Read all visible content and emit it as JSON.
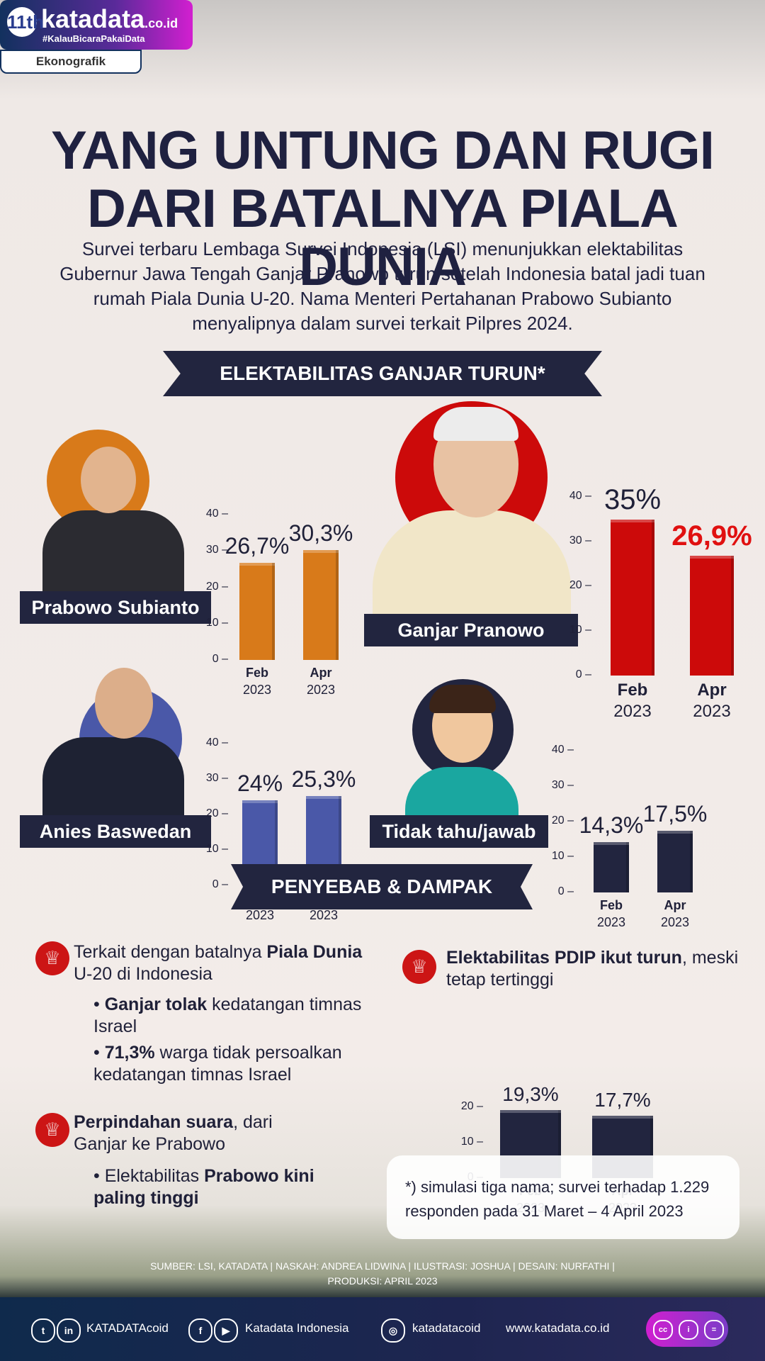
{
  "logo": {
    "badge": "11th",
    "name": "katadata",
    "domain": ".co.id",
    "tagline": "#KalauBicaraPakaiData",
    "section": "Ekonografik"
  },
  "title_line1": "YANG UNTUNG DAN RUGI",
  "title_line2": "DARI BATALNYA PIALA DUNIA",
  "intro": "Survei terbaru Lembaga Survei Indonesia (LSI) menunjukkan elektabilitas Gubernur Jawa Tengah Ganjar Pranowo turun setelah Indonesia batal jadi tuan rumah Piala Dunia U-20. Nama Menteri Pertahanan Prabowo Subianto menyalipnya dalam survei terkait Pilpres 2024.",
  "ribbon1": "ELEKTABILITAS GANJAR TURUN*",
  "ribbon2": "PENYEBAB & DAMPAK",
  "chart_data": [
    {
      "type": "bar",
      "name": "Prabowo Subianto",
      "categories": [
        "Feb 2023",
        "Apr 2023"
      ],
      "values": [
        26.7,
        30.3
      ],
      "labels": [
        "26,7%",
        "30,3%"
      ],
      "ylim": [
        0,
        40
      ],
      "yticks": [
        0,
        10,
        20,
        30,
        40
      ],
      "color": "#d87a1a"
    },
    {
      "type": "bar",
      "name": "Ganjar Pranowo",
      "categories": [
        "Feb 2023",
        "Apr 2023"
      ],
      "values": [
        35,
        26.9
      ],
      "labels": [
        "35%",
        "26,9%"
      ],
      "ylim": [
        0,
        40
      ],
      "yticks": [
        0,
        10,
        20,
        30,
        40
      ],
      "color": "#cc0a0a"
    },
    {
      "type": "bar",
      "name": "Anies Baswedan",
      "categories": [
        "Feb 2023",
        "Apr 2023"
      ],
      "values": [
        24,
        25.3
      ],
      "labels": [
        "24%",
        "25,3%"
      ],
      "ylim": [
        0,
        40
      ],
      "yticks": [
        0,
        10,
        20,
        30,
        40
      ],
      "color": "#4a58a8"
    },
    {
      "type": "bar",
      "name": "Tidak tahu/jawab",
      "categories": [
        "Feb 2023",
        "Apr 2023"
      ],
      "values": [
        14.3,
        17.5
      ],
      "labels": [
        "14,3%",
        "17,5%"
      ],
      "ylim": [
        0,
        40
      ],
      "yticks": [
        0,
        10,
        20,
        30,
        40
      ],
      "color": "#22253f"
    },
    {
      "type": "bar",
      "name": "Elektabilitas PDIP",
      "categories": [
        "Feb 2023",
        "Apr 2023"
      ],
      "values": [
        19.3,
        17.7
      ],
      "labels": [
        "19,3%",
        "17,7%"
      ],
      "ylim": [
        0,
        20
      ],
      "yticks": [
        0,
        10,
        20
      ],
      "color": "#22253f"
    }
  ],
  "cat_month": [
    "Feb",
    "Apr"
  ],
  "cat_year": "2023",
  "causes": {
    "p1_a": "Terkait dengan batalnya ",
    "p1_b": "Piala Dunia",
    "p1_c": "U-20 di Indonesia",
    "b1_bold": "Ganjar tolak",
    "b1_rest": " kedatangan timnas Israel",
    "b2_bold": "71,3%",
    "b2_rest": " warga tidak persoalkan kedatangan timnas Israel",
    "p2_bold": "Perpindahan suara",
    "p2_rest": ", dari Ganjar ke Prabowo",
    "b3_a": "Elektabilitas ",
    "b3_bold": "Prabowo kini paling tinggi",
    "p3_bold": "Elektabilitas PDIP ikut turun",
    "p3_rest": ", meski tetap tertinggi"
  },
  "note": "*) simulasi tiga nama; survei terhadap 1.229 responden pada 31 Maret – 4 April 2023",
  "credit_line1": "SUMBER:  LSI, KATADATA  | NASKAH: ANDREA LIDWINA | ILUSTRASI: JOSHUA | DESAIN: NURFATHI |",
  "credit_line2": "PRODUKSI: APRIL 2023",
  "footer": {
    "social1": "KATADATAcoid",
    "social2": "Katadata Indonesia",
    "social3": "katadatacoid",
    "website": "www.katadata.co.id"
  }
}
